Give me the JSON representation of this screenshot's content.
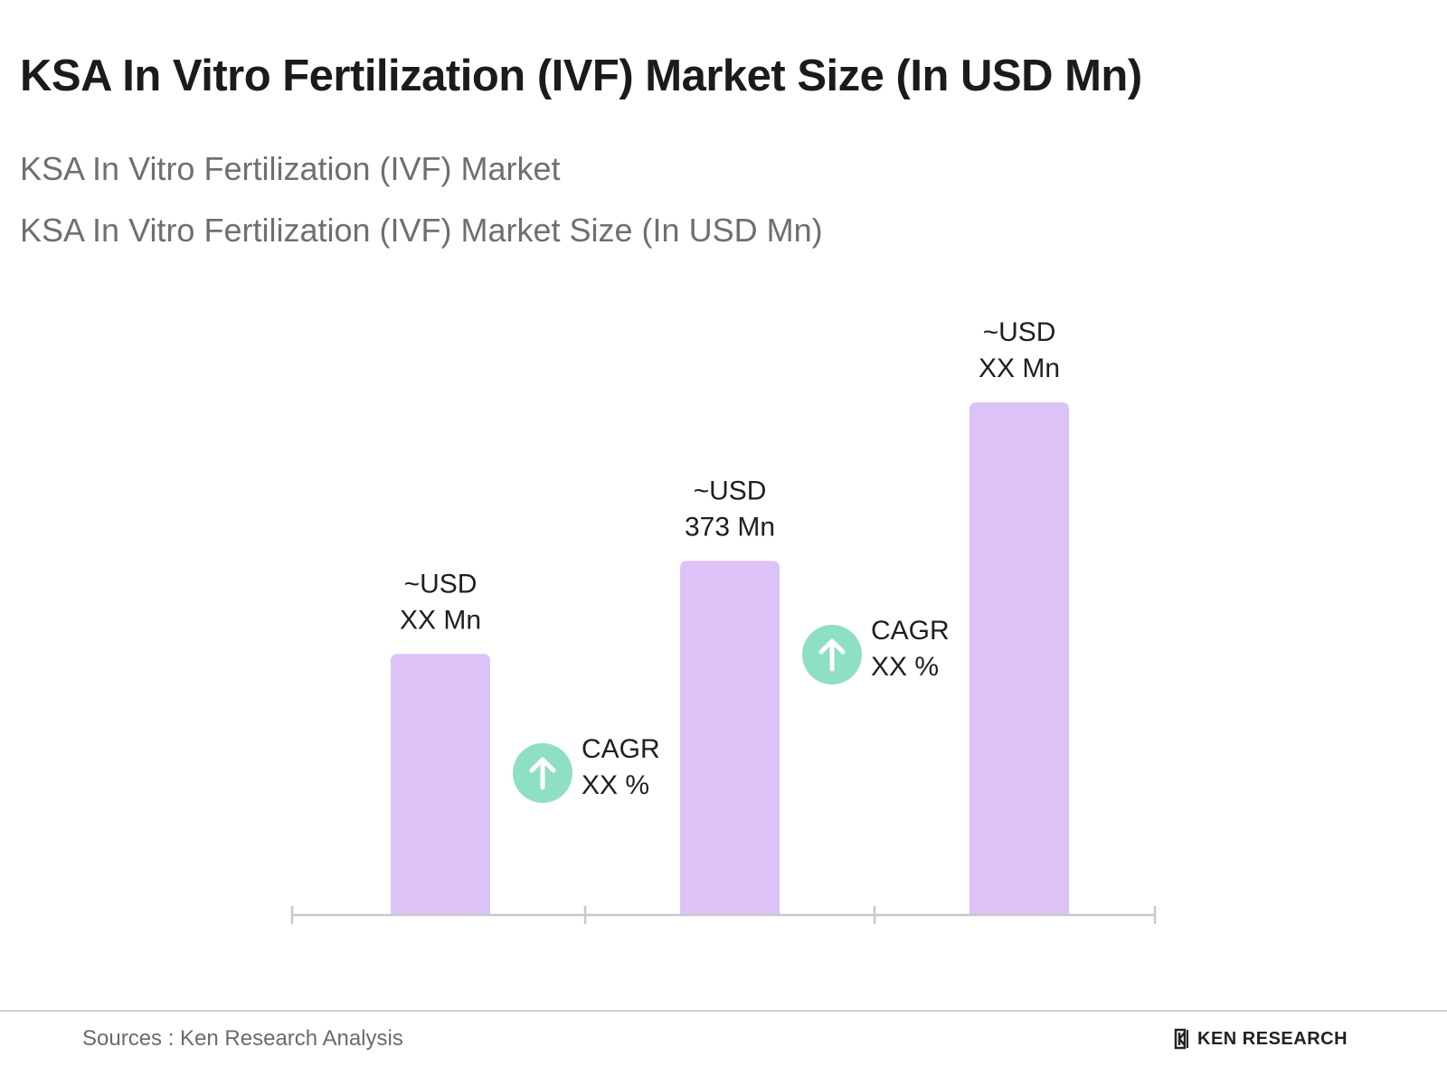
{
  "title": "KSA In Vitro Fertilization (IVF) Market Size (In USD Mn)",
  "subtitle_1": "KSA In Vitro Fertilization (IVF) Market",
  "subtitle_2": "KSA In Vitro Fertilization (IVF) Market Size (In USD Mn)",
  "colors": {
    "bar": "#dcc2f7",
    "axis": "#c8c8c8",
    "cagr_circle": "#8fdfc4",
    "cagr_arrow": "#ffffff"
  },
  "chart_data": {
    "type": "bar",
    "categories": [
      "",
      "",
      ""
    ],
    "values": [
      275,
      373,
      540
    ],
    "value_labels": [
      [
        "~USD",
        "XX Mn"
      ],
      [
        "~USD",
        "373 Mn"
      ],
      [
        "~USD",
        "XX Mn"
      ]
    ],
    "ylim": [
      0,
      640
    ],
    "grid": false,
    "annotations": [
      {
        "type": "cagr",
        "icon": "arrow-up-icon",
        "lines": [
          "CAGR",
          "XX %"
        ],
        "between": [
          0,
          1
        ]
      },
      {
        "type": "cagr",
        "icon": "arrow-up-icon",
        "lines": [
          "CAGR",
          "XX %"
        ],
        "between": [
          1,
          2
        ]
      }
    ]
  },
  "footer": {
    "source": "Sources : Ken Research Analysis",
    "brand": "KEN RESEARCH",
    "brand_icon": "ken-research-logo-icon"
  }
}
